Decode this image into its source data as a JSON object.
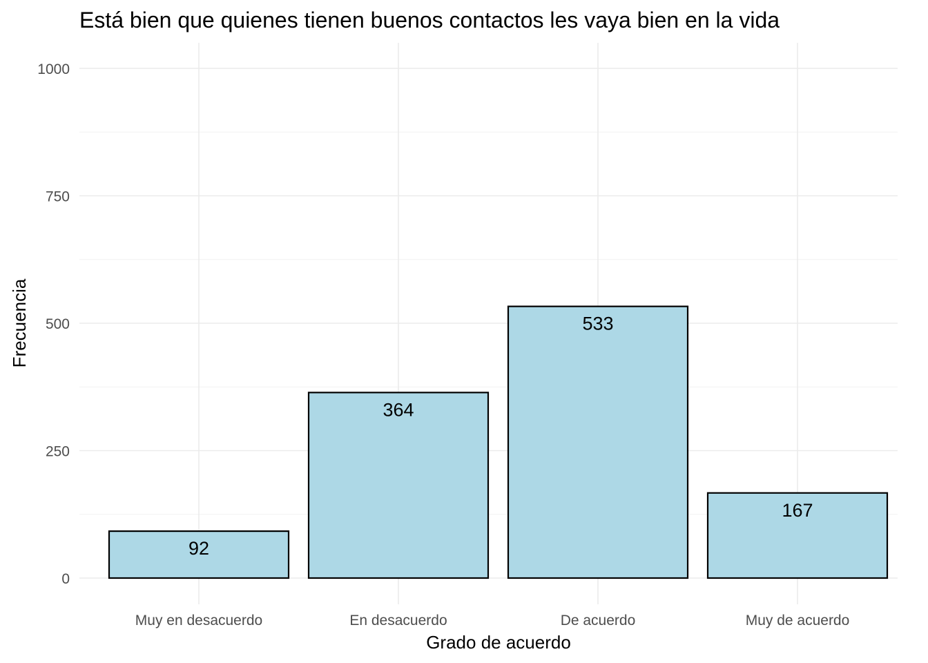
{
  "chart_data": {
    "type": "bar",
    "title": "Está bien que quienes tienen buenos contactos les vaya bien en la vida",
    "xlabel": "Grado de acuerdo",
    "ylabel": "Frecuencia",
    "categories": [
      "Muy en desacuerdo",
      "En desacuerdo",
      "De acuerdo",
      "Muy de acuerdo"
    ],
    "values": [
      92,
      364,
      533,
      167
    ],
    "data_labels": [
      "92",
      "364",
      "533",
      "167"
    ],
    "ylim": [
      0,
      1000
    ],
    "y_ticks": [
      0,
      250,
      500,
      750,
      1000
    ],
    "y_tick_labels": [
      "0",
      "250",
      "500",
      "750",
      "1000"
    ],
    "grid": true,
    "legend": "none",
    "bar_fill": "#add8e6",
    "bar_stroke": "#000000"
  }
}
